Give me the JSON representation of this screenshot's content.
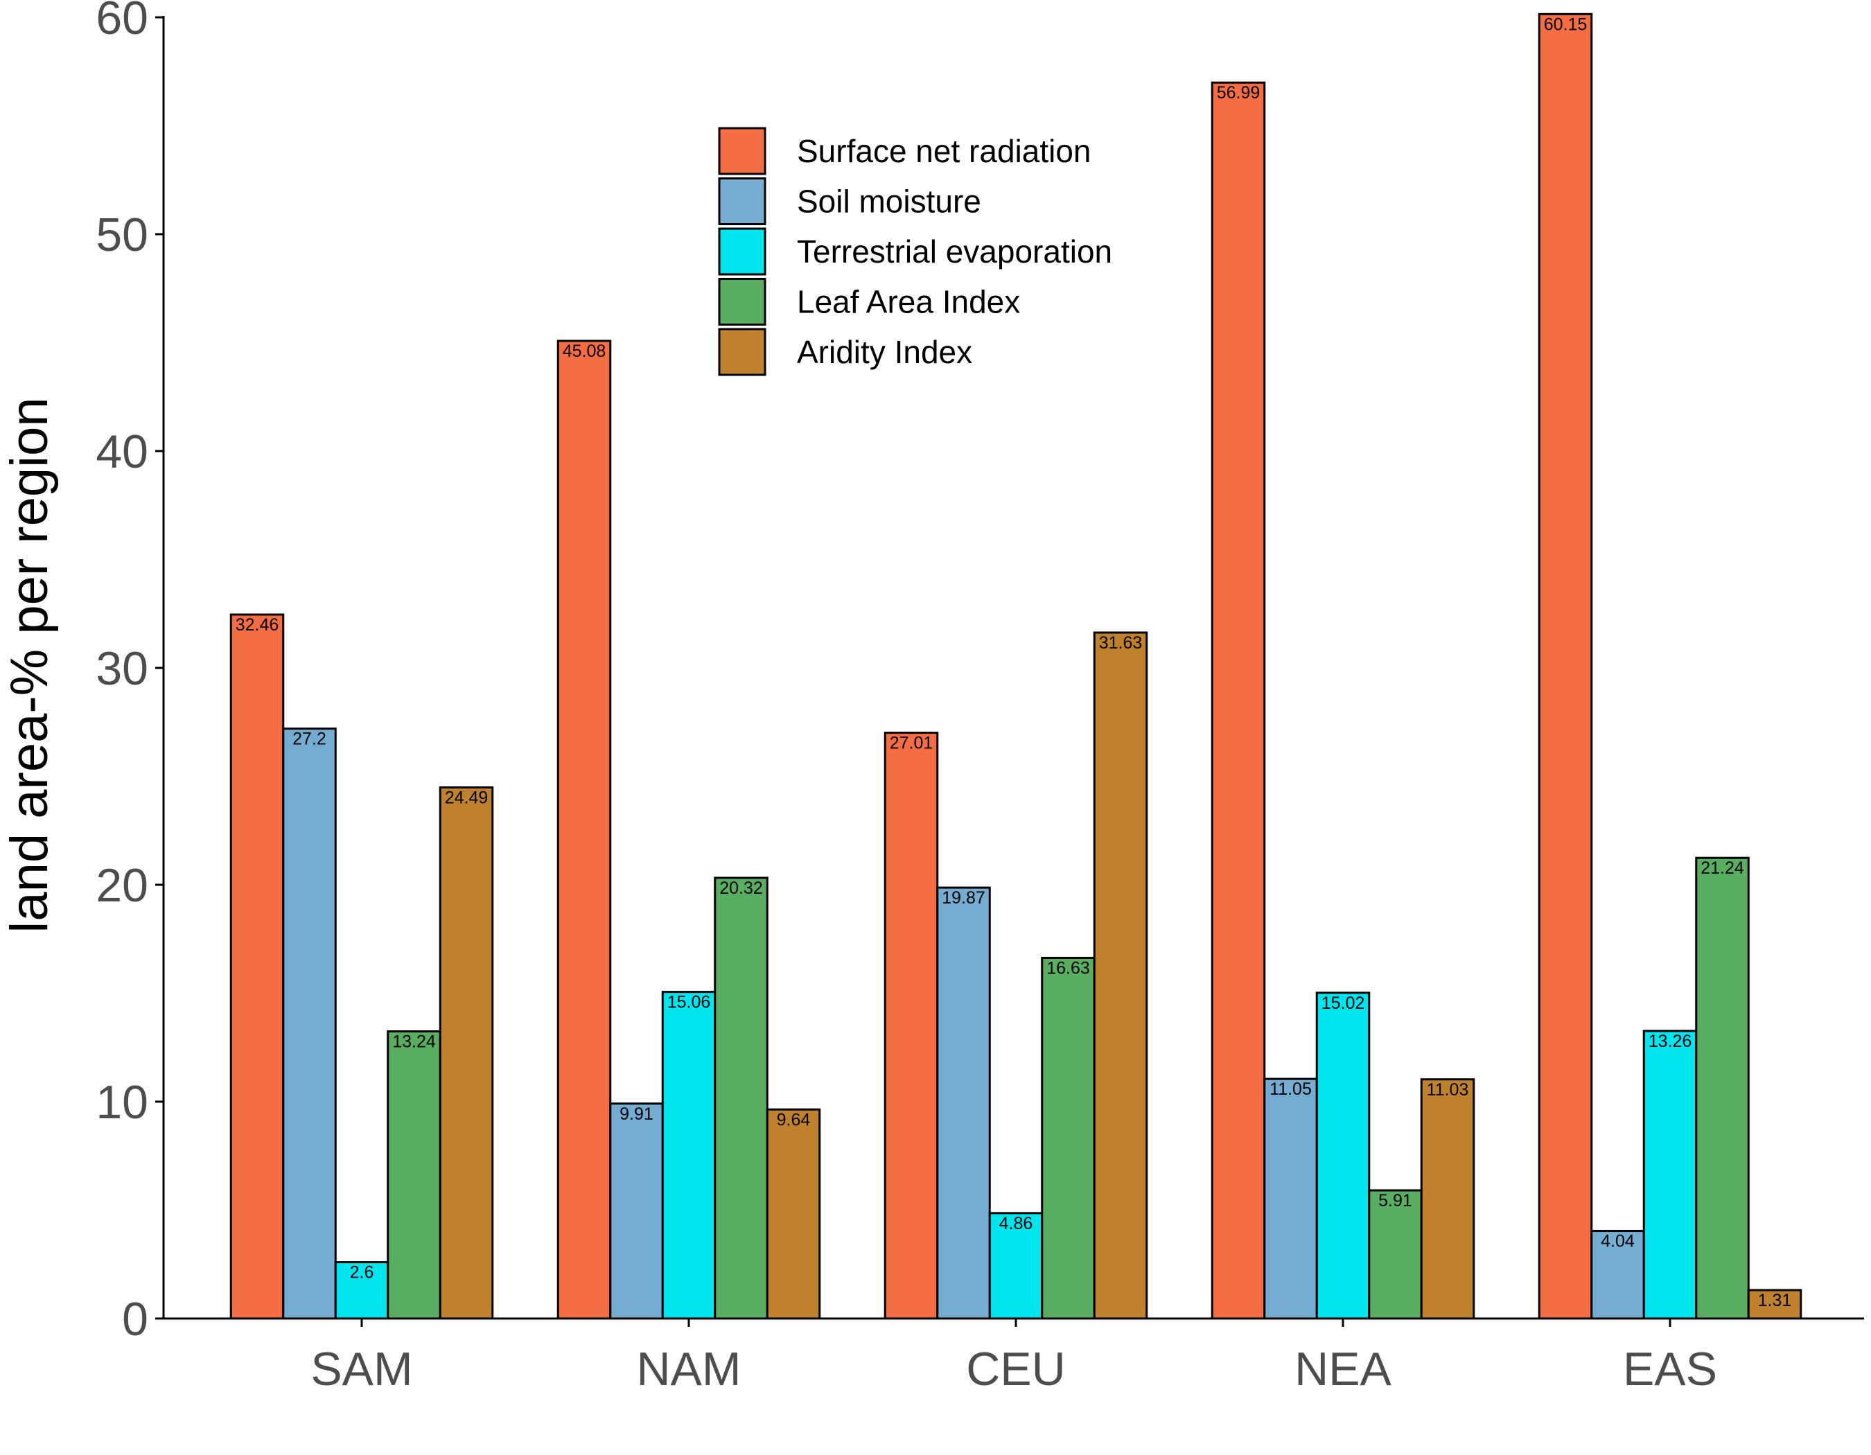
{
  "chart_data": {
    "type": "bar",
    "title": "",
    "xlabel": "",
    "ylabel": "land area-% per region",
    "ylim": [
      0,
      60
    ],
    "yticks": [
      0,
      10,
      20,
      30,
      40,
      50,
      60
    ],
    "grid": false,
    "legend_position": "top-center",
    "categories": [
      "SAM",
      "NAM",
      "CEU",
      "NEA",
      "EAS"
    ],
    "series": [
      {
        "name": "Surface net radiation",
        "color": "#F46D43",
        "values": [
          32.46,
          45.08,
          27.01,
          56.99,
          60.15
        ],
        "labels": [
          "32.46",
          "45.08",
          "27.01",
          "56.99",
          "60.15"
        ]
      },
      {
        "name": "Soil moisture",
        "color": "#74ADD1",
        "values": [
          27.2,
          9.91,
          19.87,
          11.05,
          4.04
        ],
        "labels": [
          "27.2",
          "9.91",
          "19.87",
          "11.05",
          "4.04"
        ]
      },
      {
        "name": "Terrestrial evaporation",
        "color": "#00E5EE",
        "values": [
          2.6,
          15.06,
          4.86,
          15.02,
          13.26
        ],
        "labels": [
          "2.6",
          "15.06",
          "4.86",
          "15.02",
          "13.26"
        ]
      },
      {
        "name": "Leaf Area Index",
        "color": "#5AAE61",
        "values": [
          13.24,
          20.32,
          16.63,
          5.91,
          21.24
        ],
        "labels": [
          "13.24",
          "20.32",
          "16.63",
          "5.91",
          "21.24"
        ]
      },
      {
        "name": "Aridity Index",
        "color": "#BF812D",
        "values": [
          24.49,
          9.64,
          31.63,
          11.03,
          1.31
        ],
        "labels": [
          "24.49",
          "9.64",
          "31.63",
          "11.03",
          "1.31"
        ]
      }
    ]
  }
}
